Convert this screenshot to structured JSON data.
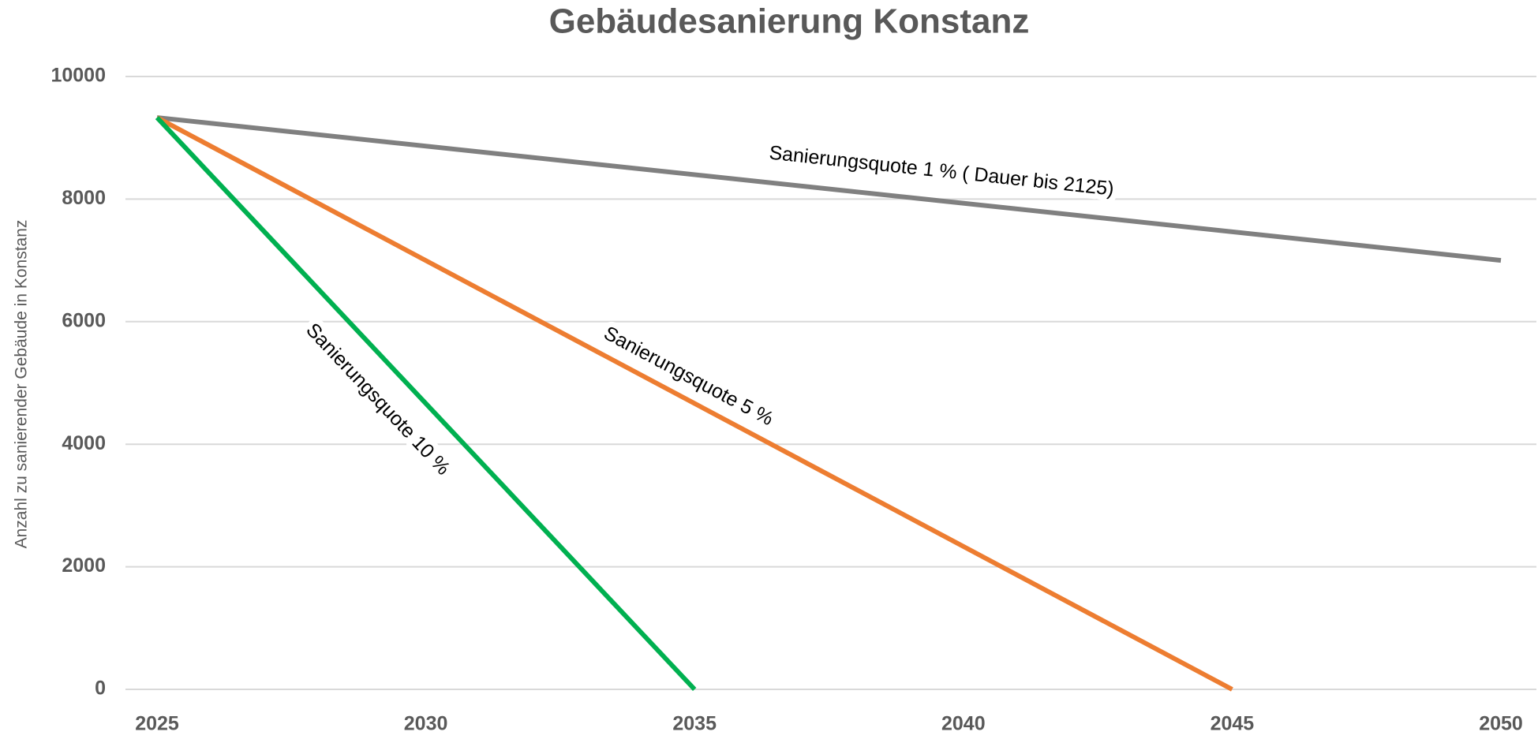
{
  "chart_data": {
    "type": "line",
    "title": "Gebäudesanierung Konstanz",
    "y_label": "Anzahl zu sanierender Gebäude in Konstanz",
    "xlim": [
      2025,
      2050
    ],
    "xticks": [
      2025,
      2030,
      2035,
      2040,
      2045,
      2050
    ],
    "ylim": [
      0,
      10000
    ],
    "yticks": [
      0,
      2000,
      4000,
      6000,
      8000,
      10000
    ],
    "grid": true,
    "series": [
      {
        "name": "Sanierungsquote 1 % ( Dauer bis 2125)",
        "color": "#808080",
        "x": [
          2025,
          2050
        ],
        "values": [
          9330,
          7000
        ]
      },
      {
        "name": "Sanierungsquote 5 %",
        "color": "#ED7D31",
        "x": [
          2025,
          2045
        ],
        "values": [
          9330,
          0
        ]
      },
      {
        "name": "Sanierungsquote 10 %",
        "color": "#00B050",
        "x": [
          2025,
          2035
        ],
        "values": [
          9330,
          0
        ]
      }
    ]
  }
}
